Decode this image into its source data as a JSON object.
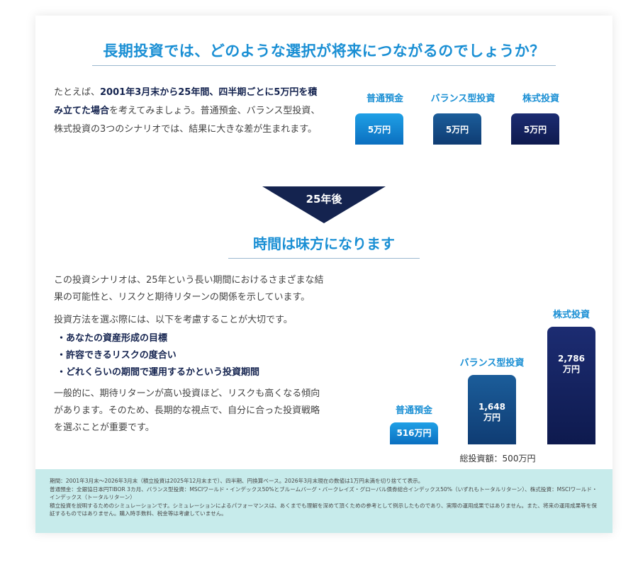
{
  "title": "長期投資では、どのような選択が将来につながるのでしょうか？",
  "intro": {
    "part1": "たとえば、",
    "bold": "2001年3月末から25年間、四半期ごとに5万円を積み立てた場合",
    "part2": "を考えてみましょう。普通預金、バランス型投資、株式投資の3つのシナリオでは、結果に大きな差が生まれます。"
  },
  "top_chart": {
    "items": [
      {
        "label": "普通預金",
        "value": "5万円"
      },
      {
        "label": "バランス型投資",
        "value": "5万円"
      },
      {
        "label": "株式投資",
        "value": "5万円"
      }
    ]
  },
  "after_badge": "25年後",
  "subtitle": "時間は味方になります",
  "body": {
    "para1": "この投資シナリオは、25年という長い期間におけるさまざまな結果の可能性と、リスクと期待リターンの関係を示しています。",
    "para2": "投資方法を選ぶ際には、以下を考慮することが大切です。",
    "bullets": [
      "あなたの資産形成の目標",
      "許容できるリスクの度合い",
      "どれくらいの期間で運用するかという投資期間"
    ],
    "para3": "一般的に、期待リターンが高い投資ほど、リスクも高くなる傾向があります。そのため、長期的な視点で、自分に合った投資戦略を選ぶことが重要です。"
  },
  "chart_data": {
    "type": "bar",
    "categories": [
      "普通預金",
      "バランス型投資",
      "株式投資"
    ],
    "values": [
      516,
      1648,
      2786
    ],
    "value_labels": [
      [
        "516万円"
      ],
      [
        "1,648",
        "万円"
      ],
      [
        "2,786",
        "万円"
      ]
    ],
    "unit": "万円",
    "xlabel": "総投資額：500万円",
    "ylabel": "",
    "colors": [
      "#1591da",
      "#14508a",
      "#142468"
    ]
  },
  "footnote": [
    "期間：2001年3月末～2026年3月末（積立投資は2025年12月末まで）、四半期、円換算ベース。2026年3月末現在の数値は1万円未満を切り捨てて表示。",
    "普通預金：全銀協日本円TIBOR 3カ月、バランス型投資：MSCIワールド・インデックス50%とブルームバーグ・バークレイズ・グローバル債券総合インデックス50%（いずれもトータルリターン）、株式投資：MSCIワールド・インデックス（トータルリターン）",
    "積立投資を説明するためのシミュレーションです。シミュレーションによるパフォーマンスは、あくまでも理解を深めて頂くための参考として例示したものであり、実際の運用成果ではありません。また、将来の運用成果等を保証するものではありません。購入時手数料、税金等は考慮していません。"
  ],
  "colors": {
    "accent_blue": "#1a8fd4",
    "navy": "#14234f",
    "footnote_bg": "#c7ebeb"
  }
}
